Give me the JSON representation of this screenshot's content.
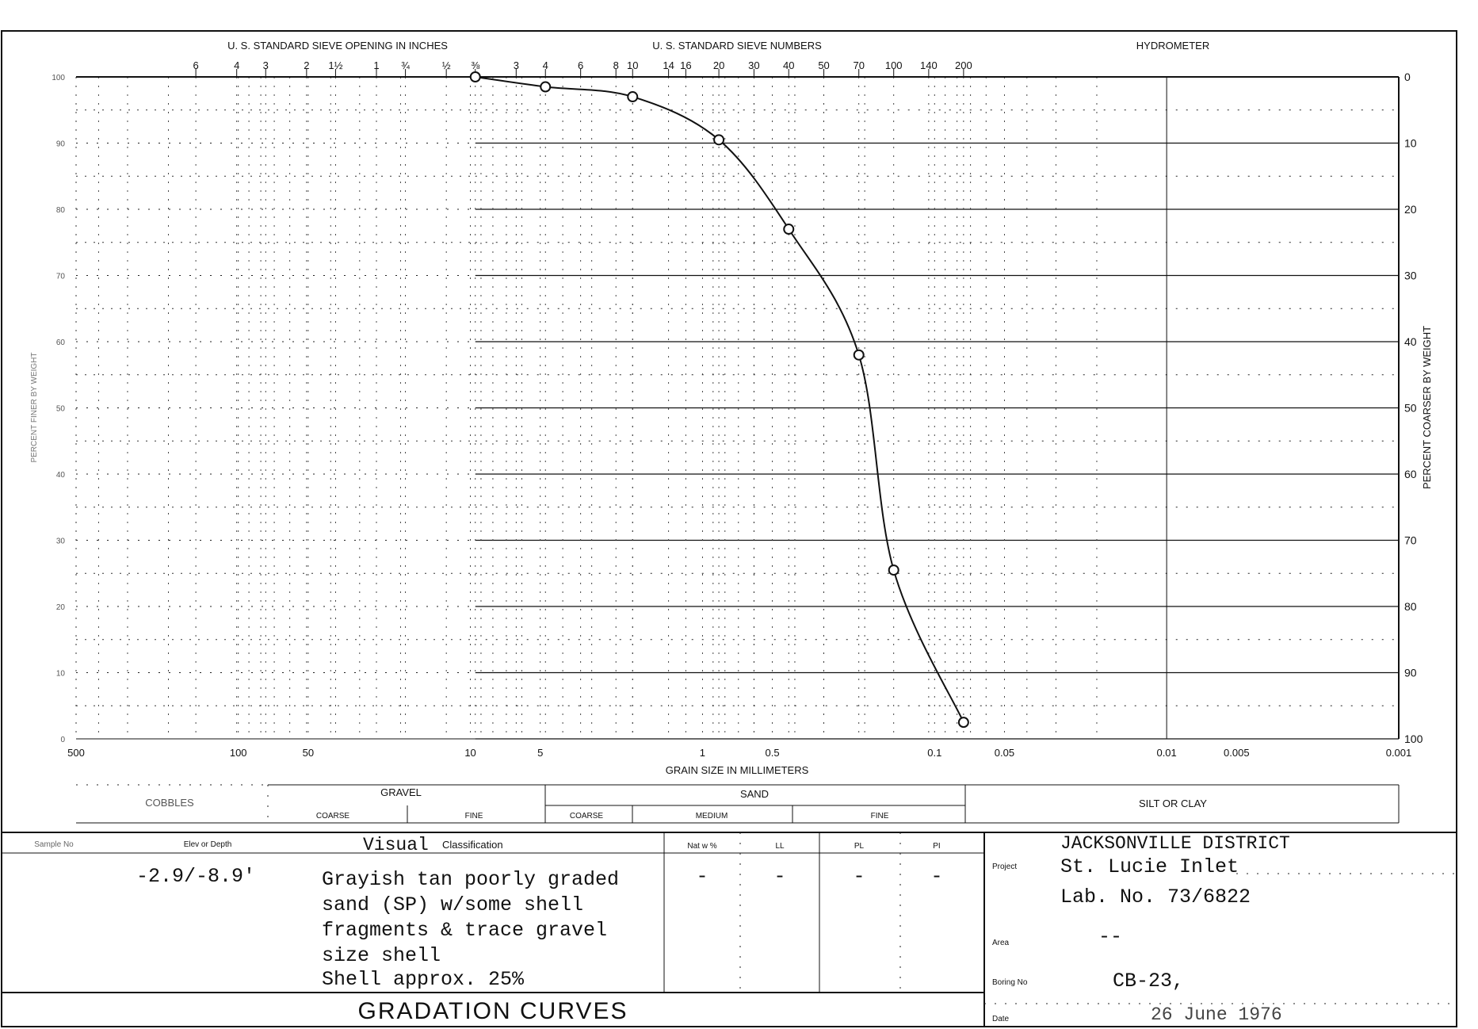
{
  "chart_data": {
    "type": "line",
    "title": "GRADATION CURVES",
    "xlabel": "GRAIN SIZE IN MILLIMETERS",
    "ylabel_left": "PERCENT FINER BY WEIGHT",
    "ylabel_right": "PERCENT COARSER BY WEIGHT",
    "x_scale": "log",
    "x_direction": "decreasing",
    "xlim": [
      500,
      0.001
    ],
    "ylim": [
      0,
      100
    ],
    "grid": true,
    "x_tick_labels": [
      {
        "value": 500,
        "label": "500"
      },
      {
        "value": 100,
        "label": "100"
      },
      {
        "value": 50,
        "label": "50"
      },
      {
        "value": 10,
        "label": "10"
      },
      {
        "value": 5,
        "label": "5"
      },
      {
        "value": 1,
        "label": "1"
      },
      {
        "value": 0.5,
        "label": "0.5"
      },
      {
        "value": 0.1,
        "label": "0.1"
      },
      {
        "value": 0.05,
        "label": "0.05"
      },
      {
        "value": 0.01,
        "label": "0.01"
      },
      {
        "value": 0.005,
        "label": "0.005"
      },
      {
        "value": 0.001,
        "label": "0.001"
      }
    ],
    "y_left_tick_labels": [
      "100",
      "90",
      "80",
      "70",
      "60",
      "50",
      "40",
      "30",
      "20",
      "10",
      "0"
    ],
    "y_right_tick_labels": [
      "0",
      "10",
      "20",
      "30",
      "40",
      "50",
      "60",
      "70",
      "80",
      "90",
      "100"
    ],
    "top_axis_inches": {
      "title": "U. S. STANDARD SIEVE OPENING IN INCHES",
      "ticks": [
        {
          "mm": 152.4,
          "label": "6"
        },
        {
          "mm": 101.6,
          "label": "4"
        },
        {
          "mm": 76.2,
          "label": "3"
        },
        {
          "mm": 50.8,
          "label": "2"
        },
        {
          "mm": 38.1,
          "label": "1½"
        },
        {
          "mm": 25.4,
          "label": "1"
        },
        {
          "mm": 19.05,
          "label": "¾"
        },
        {
          "mm": 12.7,
          "label": "½"
        },
        {
          "mm": 9.525,
          "label": "⅜"
        }
      ]
    },
    "top_axis_sieves": {
      "title": "U. S. STANDARD SIEVE NUMBERS",
      "ticks": [
        {
          "mm": 6.35,
          "label": "3"
        },
        {
          "mm": 4.75,
          "label": "4"
        },
        {
          "mm": 3.35,
          "label": "6"
        },
        {
          "mm": 2.36,
          "label": "8"
        },
        {
          "mm": 2.0,
          "label": "10"
        },
        {
          "mm": 1.4,
          "label": "14"
        },
        {
          "mm": 1.18,
          "label": "16"
        },
        {
          "mm": 0.85,
          "label": "20"
        },
        {
          "mm": 0.6,
          "label": "30"
        },
        {
          "mm": 0.425,
          "label": "40"
        },
        {
          "mm": 0.3,
          "label": "50"
        },
        {
          "mm": 0.212,
          "label": "70"
        },
        {
          "mm": 0.15,
          "label": "100"
        },
        {
          "mm": 0.106,
          "label": "140"
        },
        {
          "mm": 0.075,
          "label": "200"
        }
      ]
    },
    "hydrometer_label": "HYDROMETER",
    "series": [
      {
        "name": "",
        "x": [
          9.525,
          4.75,
          2.0,
          0.85,
          0.425,
          0.212,
          0.15,
          0.075
        ],
        "y": [
          100,
          98.5,
          97,
          90.5,
          77,
          58,
          25.5,
          2.5
        ]
      }
    ]
  },
  "classification": {
    "cobbles": "COBBLES",
    "gravel": "GRAVEL",
    "gravel_coarse": "COARSE",
    "gravel_fine": "FINE",
    "sand": "SAND",
    "sand_coarse": "COARSE",
    "sand_medium": "MEDIUM",
    "sand_fine": "FINE",
    "silt_clay": "SILT OR CLAY"
  },
  "sample_table": {
    "headers": {
      "sample_no": "Sample No",
      "elev_depth": "Elev or Depth",
      "classification_typed": "Visual",
      "classification": "Classification",
      "nat_w": "Nat w %",
      "ll": "LL",
      "pl": "PL",
      "pi": "PI"
    },
    "row": {
      "elev_depth": "-2.9/-8.9'",
      "classification_lines": [
        "Grayish tan poorly graded",
        "sand (SP) w/some shell",
        "fragments & trace gravel",
        "size shell",
        "Shell approx. 25%"
      ],
      "nat_w": "-",
      "ll": "-",
      "pl": "-",
      "pi": "-"
    },
    "footer_title": "GRADATION CURVES"
  },
  "project_info": {
    "district": "JACKSONVILLE DISTRICT",
    "project_label": "Project",
    "project": "St. Lucie Inlet",
    "lab_no": "Lab. No. 73/6822",
    "area_label": "Area",
    "area": "--",
    "boring_label": "Boring No",
    "boring_no": "CB-23,",
    "date_label": "Date",
    "date": "26 June 1976"
  }
}
